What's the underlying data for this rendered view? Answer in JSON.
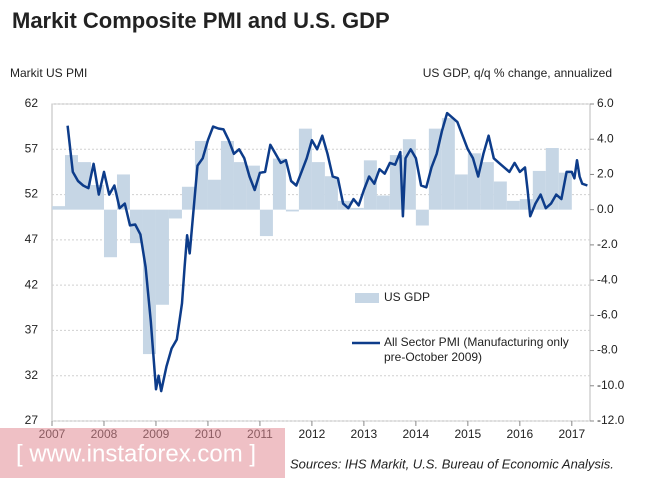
{
  "chart_data": {
    "type": "combo",
    "title": "Markit Composite PMI and U.S. GDP",
    "y_label": "Markit US  PMI",
    "y2_label": "US GDP, q/q % change, annualized",
    "source": "Sources:  IHS Markit, U.S. Bureau of Economic Analysis.",
    "watermark": "[ www.instaforex.com ]",
    "xlim": [
      2007,
      2017.35
    ],
    "xticks": [
      2007,
      2008,
      2009,
      2010,
      2011,
      2012,
      2013,
      2014,
      2015,
      2016,
      2017
    ],
    "ylim": [
      27,
      62
    ],
    "yticks": [
      62,
      57,
      52,
      47,
      42,
      37,
      32,
      27
    ],
    "y2lim": [
      -12,
      6
    ],
    "y2ticks": [
      {
        "value": 6,
        "label": "6.0"
      },
      {
        "value": 4,
        "label": "4.0"
      },
      {
        "value": 2,
        "label": "2.0"
      },
      {
        "value": 0,
        "label": "0.0"
      },
      {
        "value": -2,
        "label": "-2.0"
      },
      {
        "value": -4,
        "label": "-4.0"
      },
      {
        "value": -6,
        "label": "-6.0"
      },
      {
        "value": -8,
        "label": "-8.0"
      },
      {
        "value": -10,
        "label": "-10.0"
      },
      {
        "value": -12,
        "label": "-12.0"
      }
    ],
    "grid": true,
    "series": [
      {
        "name": "US GDP",
        "type": "bar",
        "axis": "y2",
        "color": "#c6d6e5",
        "x": [
          2007.125,
          2007.375,
          2007.625,
          2007.875,
          2008.125,
          2008.375,
          2008.625,
          2008.875,
          2009.125,
          2009.375,
          2009.625,
          2009.875,
          2010.125,
          2010.375,
          2010.625,
          2010.875,
          2011.125,
          2011.375,
          2011.625,
          2011.875,
          2012.125,
          2012.375,
          2012.625,
          2012.875,
          2013.125,
          2013.375,
          2013.625,
          2013.875,
          2014.125,
          2014.375,
          2014.625,
          2014.875,
          2015.125,
          2015.375,
          2015.625,
          2015.875,
          2016.125,
          2016.375,
          2016.625,
          2016.875
        ],
        "values": [
          0.2,
          3.1,
          2.7,
          1.4,
          -2.7,
          2.0,
          -1.9,
          -8.2,
          -5.4,
          -0.5,
          1.3,
          3.9,
          1.7,
          3.9,
          2.7,
          2.5,
          -1.5,
          2.9,
          -0.1,
          4.6,
          2.7,
          1.9,
          0.5,
          0.1,
          2.8,
          0.8,
          3.1,
          4.0,
          -0.9,
          4.6,
          5.2,
          2.0,
          3.2,
          2.7,
          1.6,
          0.5,
          0.6,
          2.2,
          3.5,
          2.1
        ]
      },
      {
        "name": "All Sector PMI (Manufacturing only pre-October 2009)",
        "type": "line",
        "axis": "y",
        "color": "#0d3c8a",
        "x": [
          2007.3,
          2007.4,
          2007.5,
          2007.6,
          2007.7,
          2007.8,
          2007.9,
          2008.0,
          2008.1,
          2008.2,
          2008.3,
          2008.4,
          2008.5,
          2008.6,
          2008.7,
          2008.8,
          2008.9,
          2009.0,
          2009.05,
          2009.1,
          2009.2,
          2009.3,
          2009.4,
          2009.5,
          2009.55,
          2009.6,
          2009.65,
          2009.75,
          2009.8,
          2009.9,
          2010.0,
          2010.1,
          2010.2,
          2010.3,
          2010.4,
          2010.5,
          2010.6,
          2010.7,
          2010.8,
          2010.9,
          2011.0,
          2011.1,
          2011.2,
          2011.3,
          2011.4,
          2011.5,
          2011.6,
          2011.7,
          2011.8,
          2011.9,
          2012.0,
          2012.1,
          2012.2,
          2012.3,
          2012.4,
          2012.5,
          2012.6,
          2012.7,
          2012.8,
          2012.9,
          2013.0,
          2013.1,
          2013.2,
          2013.3,
          2013.4,
          2013.5,
          2013.6,
          2013.7,
          2013.75,
          2013.8,
          2013.9,
          2014.0,
          2014.1,
          2014.2,
          2014.3,
          2014.4,
          2014.5,
          2014.6,
          2014.7,
          2014.8,
          2014.9,
          2015.0,
          2015.1,
          2015.2,
          2015.3,
          2015.4,
          2015.5,
          2015.6,
          2015.7,
          2015.8,
          2015.9,
          2016.0,
          2016.1,
          2016.15,
          2016.2,
          2016.3,
          2016.4,
          2016.5,
          2016.6,
          2016.7,
          2016.8,
          2016.9,
          2017.0,
          2017.05,
          2017.1,
          2017.15,
          2017.2,
          2017.3
        ],
        "values": [
          59.6,
          54.5,
          53.5,
          53,
          52.7,
          55.4,
          52,
          54.5,
          52,
          53,
          50.5,
          51,
          48.6,
          48.7,
          47.6,
          44,
          38,
          30.5,
          32,
          30.3,
          33,
          35,
          36,
          40,
          44,
          47.5,
          45.5,
          52,
          55.2,
          56,
          58,
          59.5,
          59.3,
          59.2,
          58,
          56.5,
          57,
          56,
          54,
          52.5,
          54.4,
          54.5,
          57.5,
          56.5,
          55.5,
          55.8,
          53.5,
          53,
          54.5,
          56,
          58,
          57,
          58.5,
          56.5,
          54,
          53.8,
          51,
          50.5,
          51.5,
          50.8,
          52.5,
          54,
          53.2,
          54.8,
          54.3,
          55.5,
          55.3,
          56.7,
          49.6,
          56,
          57,
          56,
          53,
          52.8,
          55,
          56.5,
          59,
          61,
          60.5,
          60,
          58.5,
          57,
          56,
          54,
          56.5,
          58.5,
          56,
          55.5,
          55,
          54.5,
          55.5,
          54.5,
          55,
          52.5,
          49.6,
          51,
          52,
          50.5,
          51,
          52,
          51.5,
          54.5,
          54.5,
          53.8,
          55.8,
          54,
          53.2,
          53
        ]
      }
    ]
  }
}
